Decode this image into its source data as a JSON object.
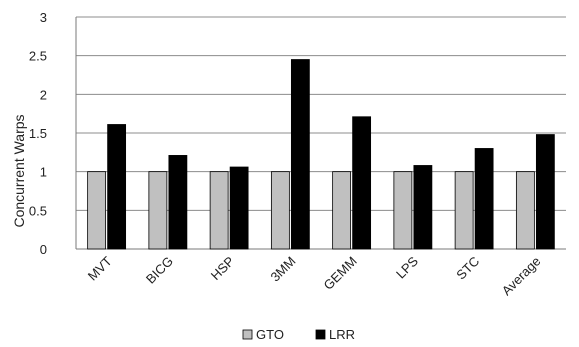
{
  "chart_data": {
    "type": "bar",
    "title": "",
    "xlabel": "",
    "ylabel": "Concurrent Warps",
    "ylim": [
      0,
      3
    ],
    "yticks": [
      "0",
      "0.5",
      "1",
      "1.5",
      "2",
      "2.5",
      "3"
    ],
    "grid": true,
    "legend_position": "bottom",
    "categories": [
      "MVT",
      "BICG",
      "HSP",
      "3MM",
      "GEMM",
      "LPS",
      "STC",
      "Average"
    ],
    "series": [
      {
        "name": "GTO",
        "color": "#c0c0c0",
        "values": [
          1,
          1,
          1,
          1,
          1,
          1,
          1,
          1
        ]
      },
      {
        "name": "LRR",
        "color": "#000000",
        "values": [
          1.61,
          1.21,
          1.06,
          2.45,
          1.71,
          1.08,
          1.3,
          1.48
        ]
      }
    ]
  }
}
